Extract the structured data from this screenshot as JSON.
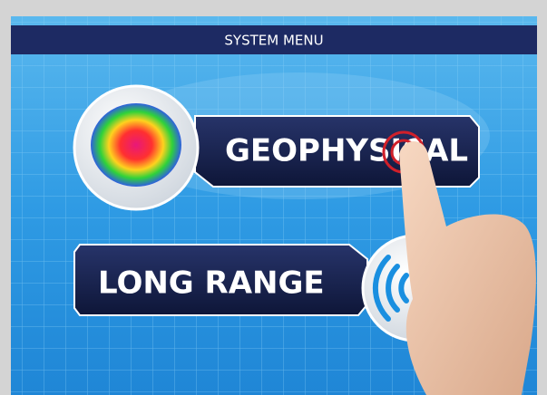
{
  "header": {
    "title": "SYSTEM MENU"
  },
  "menu": {
    "items": [
      {
        "label": "GEOPHYSICAL"
      },
      {
        "label": "LONG RANGE"
      }
    ]
  }
}
